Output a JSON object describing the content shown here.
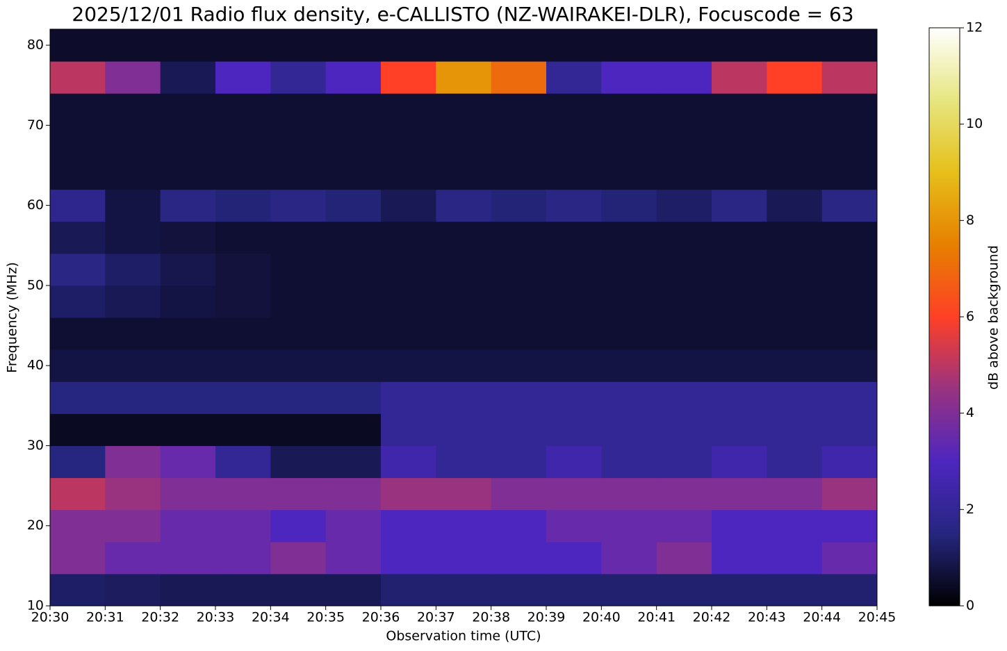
{
  "chart_data": {
    "type": "heatmap",
    "title": "2025/12/01 Radio flux density, e-CALLISTO (NZ-WAIRAKEI-DLR), Focuscode = 63",
    "x_label": "Observation time (UTC)",
    "y_label": "Frequency (MHz)",
    "colorbar_label": "dB above background",
    "time_edges": [
      "20:30",
      "20:31",
      "20:32",
      "20:33",
      "20:34",
      "20:35",
      "20:36",
      "20:37",
      "20:38",
      "20:39",
      "20:40",
      "20:41",
      "20:42",
      "20:43",
      "20:44",
      "20:45"
    ],
    "freq_edges": [
      10,
      14,
      18,
      22,
      26,
      30,
      34,
      38,
      42,
      46,
      50,
      54,
      58,
      62,
      66,
      70,
      74,
      78,
      82
    ],
    "ylim": [
      10,
      82
    ],
    "yticks": [
      10,
      20,
      30,
      40,
      50,
      60,
      70,
      80
    ],
    "clim": [
      0,
      12
    ],
    "cticks": [
      0,
      2,
      4,
      6,
      8,
      10,
      12
    ],
    "colormap": [
      "#000000",
      "#262680",
      "#4d26bf",
      "#993380",
      "#ff4026",
      "#e68000",
      "#e6bf1a",
      "#e6e680",
      "#ffffff"
    ],
    "z": [
      [
        1.2,
        1.1,
        1.0,
        1.0,
        1.0,
        1.0,
        1.3,
        1.3,
        1.3,
        1.3,
        1.3,
        1.3,
        1.3,
        1.3,
        1.3
      ],
      [
        4,
        3.5,
        3.5,
        3.5,
        4,
        3.5,
        3,
        3,
        3,
        3,
        3.5,
        4,
        3,
        3,
        3.5
      ],
      [
        4,
        4,
        3.5,
        3.5,
        3,
        3.5,
        3,
        3,
        3,
        3.5,
        3.5,
        3.5,
        3,
        3,
        3
      ],
      [
        5,
        4.5,
        4,
        4,
        4,
        4,
        4.5,
        4.5,
        4,
        4,
        4,
        4,
        4,
        4,
        4.5
      ],
      [
        1.5,
        4,
        3.5,
        2,
        1,
        1,
        2.5,
        2,
        2,
        2.5,
        2,
        2,
        2.5,
        2,
        2.5
      ],
      [
        0.4,
        0.4,
        0.4,
        0.4,
        0.4,
        0.4,
        2,
        2,
        2,
        2,
        2,
        2,
        2,
        2,
        2
      ],
      [
        1.5,
        1.5,
        1.5,
        1.5,
        1.5,
        1.5,
        2,
        2,
        2,
        2,
        2,
        2,
        2,
        2,
        2
      ],
      [
        0.8,
        0.8,
        0.8,
        0.8,
        0.8,
        0.8,
        0.8,
        0.8,
        0.8,
        0.8,
        0.8,
        0.8,
        0.8,
        0.8,
        0.8
      ],
      [
        0.6,
        0.6,
        0.6,
        0.6,
        0.6,
        0.6,
        0.6,
        0.6,
        0.6,
        0.6,
        0.6,
        0.6,
        0.6,
        0.6,
        0.6
      ],
      [
        1.2,
        1,
        0.8,
        0.7,
        0.6,
        0.6,
        0.6,
        0.6,
        0.6,
        0.6,
        0.6,
        0.6,
        0.6,
        0.6,
        0.6
      ],
      [
        1.6,
        1.2,
        0.9,
        0.7,
        0.6,
        0.6,
        0.6,
        0.6,
        0.6,
        0.6,
        0.6,
        0.6,
        0.6,
        0.6,
        0.6
      ],
      [
        1,
        0.8,
        0.7,
        0.6,
        0.6,
        0.6,
        0.6,
        0.6,
        0.6,
        0.6,
        0.6,
        0.6,
        0.6,
        0.6,
        0.6
      ],
      [
        1.8,
        0.8,
        1.6,
        1.4,
        1.6,
        1.4,
        1,
        1.6,
        1.4,
        1.6,
        1.4,
        1.2,
        1.6,
        1,
        1.6
      ],
      [
        0.6,
        0.6,
        0.6,
        0.6,
        0.6,
        0.6,
        0.6,
        0.6,
        0.6,
        0.6,
        0.6,
        0.6,
        0.6,
        0.6,
        0.6
      ],
      [
        0.6,
        0.6,
        0.6,
        0.6,
        0.6,
        0.6,
        0.6,
        0.6,
        0.6,
        0.6,
        0.6,
        0.6,
        0.6,
        0.6,
        0.6
      ],
      [
        0.6,
        0.6,
        0.6,
        0.6,
        0.6,
        0.6,
        0.6,
        0.6,
        0.6,
        0.6,
        0.6,
        0.6,
        0.6,
        0.6,
        0.6
      ],
      [
        5,
        4,
        1,
        3,
        2,
        3,
        6,
        8,
        7,
        2,
        3,
        3,
        5,
        6,
        5
      ],
      [
        0.5,
        0.5,
        0.5,
        0.5,
        0.5,
        0.5,
        0.5,
        0.5,
        0.5,
        0.5,
        0.5,
        0.5,
        0.5,
        0.5,
        0.5
      ]
    ]
  }
}
